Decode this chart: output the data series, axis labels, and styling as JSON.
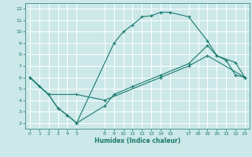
{
  "title": "",
  "xlabel": "Humidex (Indice chaleur)",
  "bg_color": "#cce8e8",
  "line_color": "#1a7a6e",
  "grid_color": "#ffffff",
  "xlim": [
    -0.5,
    23.5
  ],
  "ylim": [
    1.5,
    12.5
  ],
  "xticks": [
    0,
    1,
    2,
    3,
    4,
    5,
    8,
    9,
    10,
    11,
    12,
    13,
    14,
    15,
    17,
    18,
    19,
    20,
    21,
    22,
    23
  ],
  "yticks": [
    2,
    3,
    4,
    5,
    6,
    7,
    8,
    9,
    10,
    11,
    12
  ],
  "line1_x": [
    0,
    1,
    2,
    3,
    4,
    5,
    9,
    10,
    11,
    12,
    13,
    14,
    15,
    17,
    19,
    20,
    21,
    22,
    23
  ],
  "line1_y": [
    6.0,
    5.2,
    4.5,
    3.3,
    2.7,
    2.0,
    9.0,
    10.0,
    10.6,
    11.3,
    11.4,
    11.7,
    11.7,
    11.3,
    9.2,
    7.9,
    7.5,
    6.2,
    6.0
  ],
  "line2_x": [
    0,
    2,
    3,
    4,
    5,
    8,
    9,
    11,
    14,
    17,
    19,
    20,
    22,
    23
  ],
  "line2_y": [
    6.0,
    4.5,
    3.3,
    2.7,
    2.0,
    3.5,
    4.5,
    5.2,
    6.2,
    7.2,
    8.8,
    7.9,
    7.3,
    6.0
  ],
  "line3_x": [
    0,
    2,
    5,
    8,
    14,
    17,
    19,
    23
  ],
  "line3_y": [
    6.0,
    4.5,
    4.5,
    4.0,
    6.0,
    7.0,
    7.9,
    6.0
  ]
}
